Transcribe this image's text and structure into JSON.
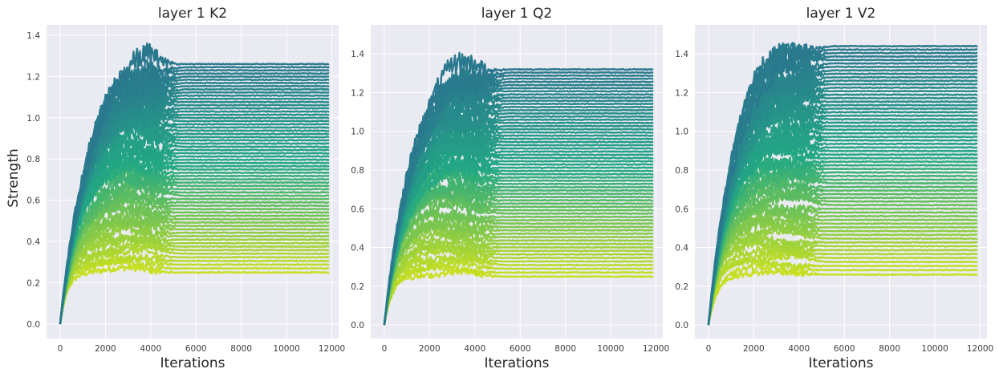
{
  "chart_data": [
    {
      "type": "line",
      "title": "layer 1 K2",
      "xlabel": "Iterations",
      "ylabel": "Strength",
      "xlim": [
        -600,
        12300
      ],
      "ylim": [
        -0.07,
        1.45
      ],
      "xticks": [
        0,
        2000,
        4000,
        6000,
        8000,
        10000,
        12000
      ],
      "xtick_labels": [
        "0",
        "2000",
        "4000",
        "6000",
        "8000",
        "10000",
        "12000"
      ],
      "yticks": [
        0.0,
        0.2,
        0.4,
        0.6,
        0.8,
        1.0,
        1.2,
        1.4
      ],
      "ytick_labels": [
        "0.0",
        "0.2",
        "0.4",
        "0.6",
        "0.8",
        "1.0",
        "1.2",
        "1.4"
      ],
      "grid": true,
      "colormap": "viridis (upper range: teal to yellow-green)",
      "series_count": 64,
      "final_strength_range": [
        0.25,
        1.26
      ],
      "peak_strength": 1.37,
      "peak_iteration": 3600,
      "settle_iteration": 5500,
      "x_max": 11900
    },
    {
      "type": "line",
      "title": "layer 1 Q2",
      "xlabel": "Iterations",
      "ylabel": "",
      "xlim": [
        -600,
        12300
      ],
      "ylim": [
        -0.07,
        1.55
      ],
      "xticks": [
        0,
        2000,
        4000,
        6000,
        8000,
        10000,
        12000
      ],
      "xtick_labels": [
        "0",
        "2000",
        "4000",
        "6000",
        "8000",
        "10000",
        "12000"
      ],
      "yticks": [
        0.0,
        0.2,
        0.4,
        0.6,
        0.8,
        1.0,
        1.2,
        1.4
      ],
      "ytick_labels": [
        "0.0",
        "0.2",
        "0.4",
        "0.6",
        "0.8",
        "1.0",
        "1.2",
        "1.4"
      ],
      "grid": true,
      "colormap": "viridis (upper range: teal to yellow-green)",
      "series_count": 64,
      "final_strength_range": [
        0.25,
        1.32
      ],
      "peak_strength": 1.46,
      "peak_iteration": 3000,
      "settle_iteration": 5500,
      "x_max": 11900
    },
    {
      "type": "line",
      "title": "layer 1 V2",
      "xlabel": "Iterations",
      "ylabel": "",
      "xlim": [
        -600,
        12300
      ],
      "ylim": [
        -0.07,
        1.55
      ],
      "xticks": [
        0,
        2000,
        4000,
        6000,
        8000,
        10000,
        12000
      ],
      "xtick_labels": [
        "0",
        "2000",
        "4000",
        "6000",
        "8000",
        "10000",
        "12000"
      ],
      "yticks": [
        0.0,
        0.2,
        0.4,
        0.6,
        0.8,
        1.0,
        1.2,
        1.4
      ],
      "ytick_labels": [
        "0.0",
        "0.2",
        "0.4",
        "0.6",
        "0.8",
        "1.0",
        "1.2",
        "1.4"
      ],
      "grid": true,
      "colormap": "viridis (upper range: teal to yellow-green)",
      "series_count": 64,
      "final_strength_range": [
        0.26,
        1.44
      ],
      "peak_strength": 1.46,
      "peak_iteration": 3600,
      "settle_iteration": 5500,
      "x_max": 11900
    }
  ],
  "colors": {
    "figure_background": "#ffffff",
    "plot_background": "#eaeaf2",
    "grid": "#ffffff",
    "text": "#262626",
    "tick_text": "#404040",
    "low_strength_color": "#c8e020",
    "high_strength_color": "#2a788e"
  }
}
